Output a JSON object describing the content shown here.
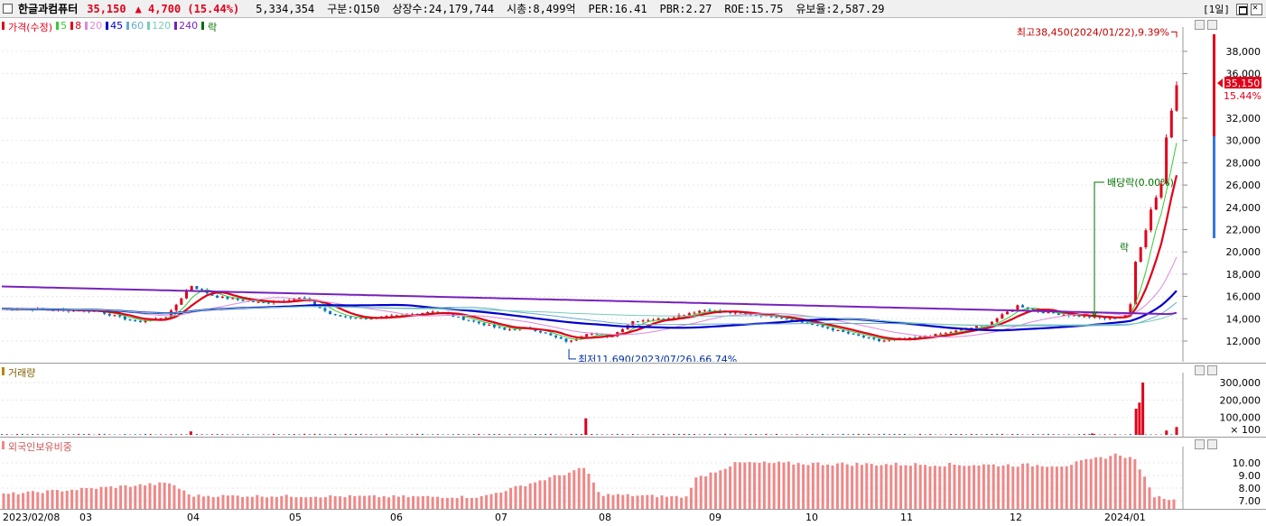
{
  "title": {
    "name": "한글과컴퓨터",
    "price": "35,150",
    "change": "▲ 4,700 (15.44%)",
    "volume": "5,334,354",
    "category": "구분:Q150",
    "shares": "상장수:24,179,744",
    "mcap": "시총:8,499억",
    "per": "PER:16.41",
    "pbr": "PBR:2.27",
    "roe": "ROE:15.75",
    "reserve": "유보율:2,587.29",
    "period": "[1일]"
  },
  "legend": {
    "price": "가격(수정)",
    "ma": [
      {
        "label": "5",
        "color": "#33cc33"
      },
      {
        "label": "8",
        "color": "#e0001a"
      },
      {
        "label": "20",
        "color": "#dd88dd"
      },
      {
        "label": "45",
        "color": "#0000cc"
      },
      {
        "label": "60",
        "color": "#66aacc"
      },
      {
        "label": "120",
        "color": "#77ccbb"
      },
      {
        "label": "240",
        "color": "#7722bb"
      }
    ],
    "rak": "락"
  },
  "annotations": {
    "high": "최고38,450(2024/01/22),9.39%",
    "low": "최저11,690(2023/07/26),66.74%",
    "dividend": "배당락(0.00%)",
    "dividend_marker": "락"
  },
  "price_axis": {
    "ticks": [
      "38,000",
      "36,000",
      "32,000",
      "30,000",
      "28,000",
      "26,000",
      "24,000",
      "22,000",
      "20,000",
      "18,000",
      "16,000",
      "14,000",
      "12,000"
    ],
    "current_price": "35,150",
    "current_pct": "15.44%"
  },
  "volume_panel": {
    "label": "거래량",
    "ticks": [
      "300,000",
      "200,000",
      "100,000"
    ],
    "unit": "× 100"
  },
  "foreign_panel": {
    "label": "외국인보유비중",
    "ticks": [
      "10.00",
      "9.00",
      "8.00",
      "7.00"
    ]
  },
  "dates": {
    "start": "2023/02/08",
    "months": [
      "03",
      "04",
      "05",
      "06",
      "07",
      "08",
      "09",
      "10",
      "11",
      "12",
      "2024/01"
    ]
  },
  "colors": {
    "up": "#e0001a",
    "down": "#0070c0",
    "volume": "#e0001a",
    "foreign": "#ee8888"
  },
  "chart_data": {
    "type": "candlestick",
    "x_start": "2023/02/08",
    "x_end": "2024/01/22",
    "price_range": [
      11000,
      39500
    ],
    "high": {
      "value": 38450,
      "date": "2024/01/22"
    },
    "low": {
      "value": 11690,
      "date": "2023/07/26"
    },
    "close_path": [
      [
        "2023/02/08",
        14900
      ],
      [
        "2023/02/22",
        14800
      ],
      [
        "2023/03/08",
        14700
      ],
      [
        "2023/03/20",
        13700
      ],
      [
        "2023/03/29",
        14200
      ],
      [
        "2023/04/05",
        17000
      ],
      [
        "2023/04/12",
        16000
      ],
      [
        "2023/04/26",
        15400
      ],
      [
        "2023/05/08",
        15900
      ],
      [
        "2023/05/17",
        14300
      ],
      [
        "2023/05/26",
        14000
      ],
      [
        "2023/06/07",
        14300
      ],
      [
        "2023/06/16",
        14700
      ],
      [
        "2023/06/27",
        13800
      ],
      [
        "2023/07/07",
        13000
      ],
      [
        "2023/07/14",
        13200
      ],
      [
        "2023/07/26",
        11900
      ],
      [
        "2023/08/01",
        12800
      ],
      [
        "2023/08/07",
        12300
      ],
      [
        "2023/08/14",
        13800
      ],
      [
        "2023/08/23",
        14000
      ],
      [
        "2023/09/04",
        14800
      ],
      [
        "2023/09/13",
        14500
      ],
      [
        "2023/09/25",
        14200
      ],
      [
        "2023/10/10",
        13200
      ],
      [
        "2023/10/19",
        12500
      ],
      [
        "2023/10/26",
        12000
      ],
      [
        "2023/11/06",
        12300
      ],
      [
        "2023/11/16",
        12800
      ],
      [
        "2023/11/27",
        13500
      ],
      [
        "2023/12/06",
        15200
      ],
      [
        "2023/12/13",
        14600
      ],
      [
        "2023/12/22",
        14300
      ],
      [
        "2024/01/02",
        14000
      ],
      [
        "2024/01/08",
        14400
      ],
      [
        "2024/01/10",
        19500
      ],
      [
        "2024/01/12",
        21000
      ],
      [
        "2024/01/15",
        24500
      ],
      [
        "2024/01/17",
        25500
      ],
      [
        "2024/01/18",
        27000
      ],
      [
        "2024/01/19",
        30400
      ],
      [
        "2024/01/22",
        35150
      ]
    ],
    "volume_spikes": [
      {
        "date": "2023/04/05",
        "value": 20000
      },
      {
        "date": "2023/07/31",
        "value": 95000
      },
      {
        "date": "2023/12/28",
        "value": 8000
      },
      {
        "date": "2024/01/10",
        "value": 150000
      },
      {
        "date": "2024/01/11",
        "value": 185000
      },
      {
        "date": "2024/01/12",
        "value": 300000
      },
      {
        "date": "2024/01/19",
        "value": 25000
      },
      {
        "date": "2024/01/22",
        "value": 45000
      }
    ],
    "foreign_ratio": [
      [
        "2023/02/08",
        7.5
      ],
      [
        "2023/03/30",
        8.4
      ],
      [
        "2023/04/05",
        7.4
      ],
      [
        "2023/06/30",
        7.3
      ],
      [
        "2023/07/31",
        9.6
      ],
      [
        "2023/08/04",
        7.5
      ],
      [
        "2023/08/30",
        7.3
      ],
      [
        "2023/09/01",
        8.7
      ],
      [
        "2023/09/14",
        10.0
      ],
      [
        "2023/10/20",
        9.9
      ],
      [
        "2023/12/20",
        9.8
      ],
      [
        "2024/01/05",
        10.7
      ],
      [
        "2024/01/10",
        10.2
      ],
      [
        "2024/01/15",
        7.4
      ],
      [
        "2024/01/22",
        7.0
      ]
    ]
  }
}
